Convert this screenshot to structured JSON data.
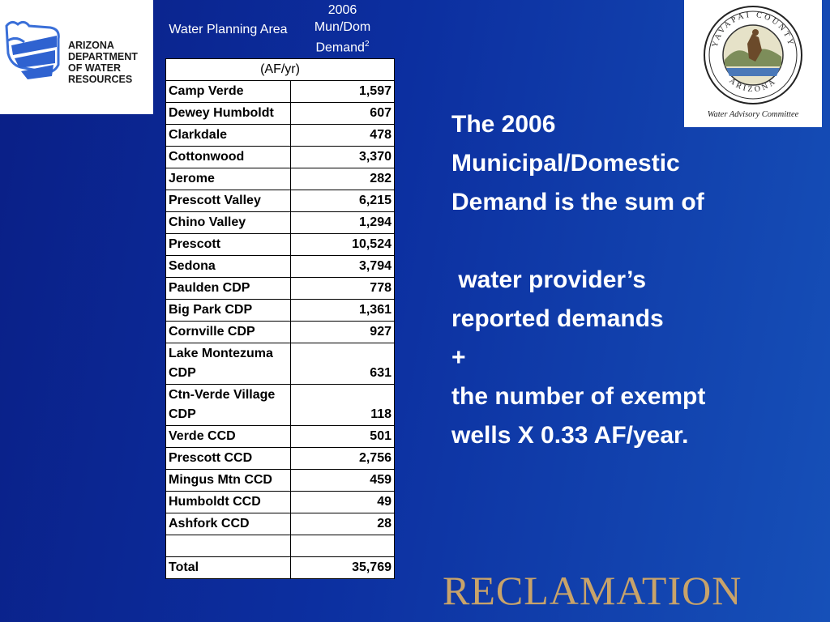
{
  "adwr_logo": {
    "lines": [
      "ARIZONA",
      "DEPARTMENT",
      "OF WATER",
      "RESOURCES"
    ]
  },
  "county_seal": {
    "ring_top": "YAVAPAI COUNTY",
    "ring_bottom": "ARIZONA",
    "caption": "Water Advisory Committee"
  },
  "table": {
    "header": {
      "col1": "Water Planning Area",
      "col2_line1": "2006",
      "col2_line2": "Mun/Dom",
      "col2_line3": "Demand",
      "col2_note": "2"
    },
    "unit": "(AF/yr)",
    "rows": [
      {
        "area": "Camp Verde",
        "value": "1,597"
      },
      {
        "area": "Dewey Humboldt",
        "value": "607"
      },
      {
        "area": "Clarkdale",
        "value": "478"
      },
      {
        "area": "Cottonwood",
        "value": "3,370"
      },
      {
        "area": "Jerome",
        "value": "282"
      },
      {
        "area": "Prescott Valley",
        "value": "6,215"
      },
      {
        "area": "Chino Valley",
        "value": "1,294"
      },
      {
        "area": "Prescott",
        "value": "10,524"
      },
      {
        "area": "Sedona",
        "value": "3,794"
      },
      {
        "area": "Paulden CDP",
        "value": "778"
      },
      {
        "area": "Big Park CDP",
        "value": "1,361"
      },
      {
        "area": "Cornville CDP",
        "value": "927"
      },
      {
        "area": "Lake Montezuma CDP",
        "value": "631"
      },
      {
        "area": "Ctn-Verde Village CDP",
        "value": "118"
      },
      {
        "area": "Verde CCD",
        "value": "501"
      },
      {
        "area": "Prescott CCD",
        "value": "2,756"
      },
      {
        "area": "Mingus Mtn CCD",
        "value": "459"
      },
      {
        "area": "Humboldt CCD",
        "value": "49"
      },
      {
        "area": "Ashfork CCD",
        "value": "28"
      }
    ],
    "total_label": "Total",
    "total_value": "35,769"
  },
  "explanation": {
    "lines": [
      "The 2006",
      "Municipal/Domestic",
      "Demand is the sum of",
      "",
      " water provider’s",
      "reported demands",
      "+",
      "the number of exempt",
      "wells X 0.33 AF/year."
    ]
  },
  "footer": {
    "wordmark": "RECLAMATION"
  },
  "colors": {
    "background_start": "#0a1f86",
    "background_end": "#1650b8",
    "wordmark": "#c8a36a",
    "adwr_blue": "#3a6fd8"
  }
}
